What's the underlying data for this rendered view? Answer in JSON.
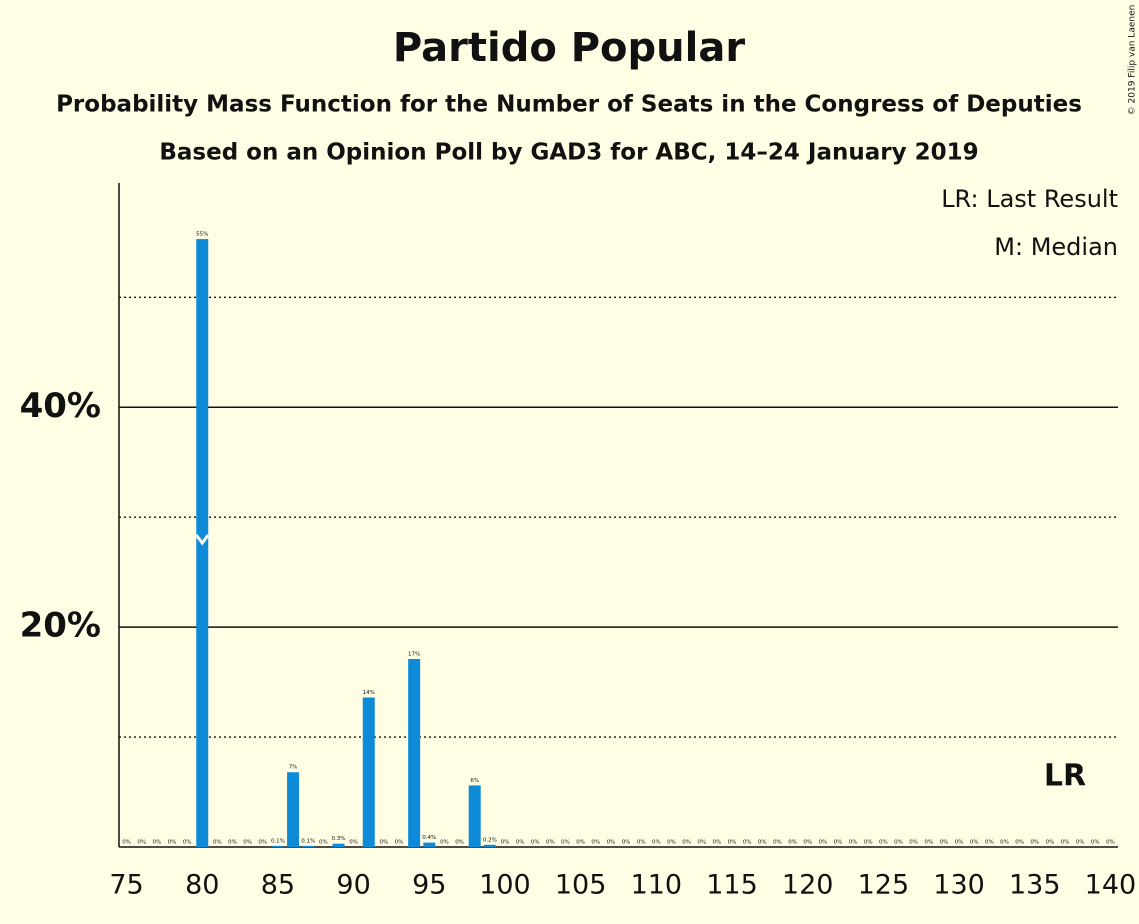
{
  "chart_data": {
    "type": "bar",
    "title": "Partido Popular",
    "subtitle": "Probability Mass Function for the Number of Seats in the Congress of Deputies",
    "subtitle2": "Based on an Opinion Poll by GAD3 for ABC, 14–24 January 2019",
    "copyright": "© 2019 Filip van Laenen",
    "legend": [
      "LR: Last Result",
      "M: Median"
    ],
    "color": "#0e8bd8",
    "x": [
      75,
      76,
      77,
      78,
      79,
      80,
      81,
      82,
      83,
      84,
      85,
      86,
      87,
      88,
      89,
      90,
      91,
      92,
      93,
      94,
      95,
      96,
      97,
      98,
      99,
      100,
      101,
      102,
      103,
      104,
      105,
      106,
      107,
      108,
      109,
      110,
      111,
      112,
      113,
      114,
      115,
      116,
      117,
      118,
      119,
      120,
      121,
      122,
      123,
      124,
      125,
      126,
      127,
      128,
      129,
      130,
      131,
      132,
      133,
      134,
      135,
      136,
      137,
      138,
      139,
      140
    ],
    "values": [
      0,
      0,
      0,
      0,
      0,
      55.3,
      0,
      0,
      0,
      0,
      0.1,
      6.8,
      0.1,
      0,
      0.3,
      0,
      13.6,
      0,
      0,
      17.1,
      0.4,
      0,
      0,
      5.6,
      0.2,
      0,
      0,
      0,
      0,
      0,
      0,
      0,
      0,
      0,
      0,
      0,
      0,
      0,
      0,
      0,
      0,
      0,
      0,
      0,
      0,
      0,
      0,
      0,
      0,
      0,
      0,
      0,
      0,
      0,
      0,
      0,
      0,
      0,
      0,
      0,
      0,
      0,
      0,
      0,
      0,
      0
    ],
    "value_labels": [
      "0%",
      "0%",
      "0%",
      "0%",
      "0%",
      "55%",
      "0%",
      "0%",
      "0%",
      "0%",
      "0.1%",
      "7%",
      "0.1%",
      "0%",
      "0.3%",
      "0%",
      "14%",
      "0%",
      "0%",
      "17%",
      "0.4%",
      "0%",
      "0%",
      "6%",
      "0.2%",
      "0%",
      "0%",
      "0%",
      "0%",
      "0%",
      "0%",
      "0%",
      "0%",
      "0%",
      "0%",
      "0%",
      "0%",
      "0%",
      "0%",
      "0%",
      "0%",
      "0%",
      "0%",
      "0%",
      "0%",
      "0%",
      "0%",
      "0%",
      "0%",
      "0%",
      "0%",
      "0%",
      "0%",
      "0%",
      "0%",
      "0%",
      "0%",
      "0%",
      "0%",
      "0%",
      "0%",
      "0%",
      "0%",
      "0%",
      "0%",
      "0%"
    ],
    "median": 80,
    "last_result": {
      "value": 137,
      "label": "LR"
    },
    "xlim": [
      74.5,
      140.5
    ],
    "xticks": [
      75,
      80,
      85,
      90,
      95,
      100,
      105,
      110,
      115,
      120,
      125,
      130,
      135,
      140
    ],
    "ylim": [
      0,
      60.4
    ],
    "yticks": [
      {
        "value": 20,
        "label": "20%"
      },
      {
        "value": 40,
        "label": "40%"
      }
    ],
    "minor_yticks": [
      10,
      30,
      50
    ],
    "grid": true
  }
}
